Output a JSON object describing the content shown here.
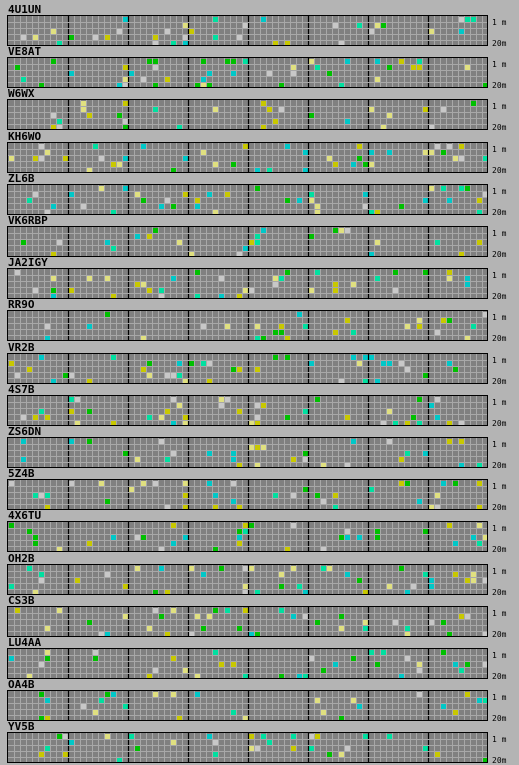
{
  "bands": {
    "top": "1 m",
    "bottom": "20m"
  },
  "colors": {
    "background": "#b4b4b4",
    "grid_fill": "#808080",
    "grid_line": "#a8a8a8",
    "hour_divider": "#000000",
    "signal_levels": [
      "#c8c800",
      "#00c000",
      "#00e0a0",
      "#00c8c8",
      "#e0e080",
      "#c8c8c8"
    ]
  },
  "beacons": [
    {
      "callsign": "4U1UN"
    },
    {
      "callsign": "VE8AT"
    },
    {
      "callsign": "W6WX"
    },
    {
      "callsign": "KH6WO"
    },
    {
      "callsign": "ZL6B"
    },
    {
      "callsign": "VK6RBP"
    },
    {
      "callsign": "JA2IGY"
    },
    {
      "callsign": "RR9O"
    },
    {
      "callsign": "VR2B"
    },
    {
      "callsign": "4S7B"
    },
    {
      "callsign": "ZS6DN"
    },
    {
      "callsign": "5Z4B"
    },
    {
      "callsign": "4X6TU"
    },
    {
      "callsign": "OH2B"
    },
    {
      "callsign": "CS3B"
    },
    {
      "callsign": "LU4AA"
    },
    {
      "callsign": "OA4B"
    },
    {
      "callsign": "YV5B"
    }
  ]
}
